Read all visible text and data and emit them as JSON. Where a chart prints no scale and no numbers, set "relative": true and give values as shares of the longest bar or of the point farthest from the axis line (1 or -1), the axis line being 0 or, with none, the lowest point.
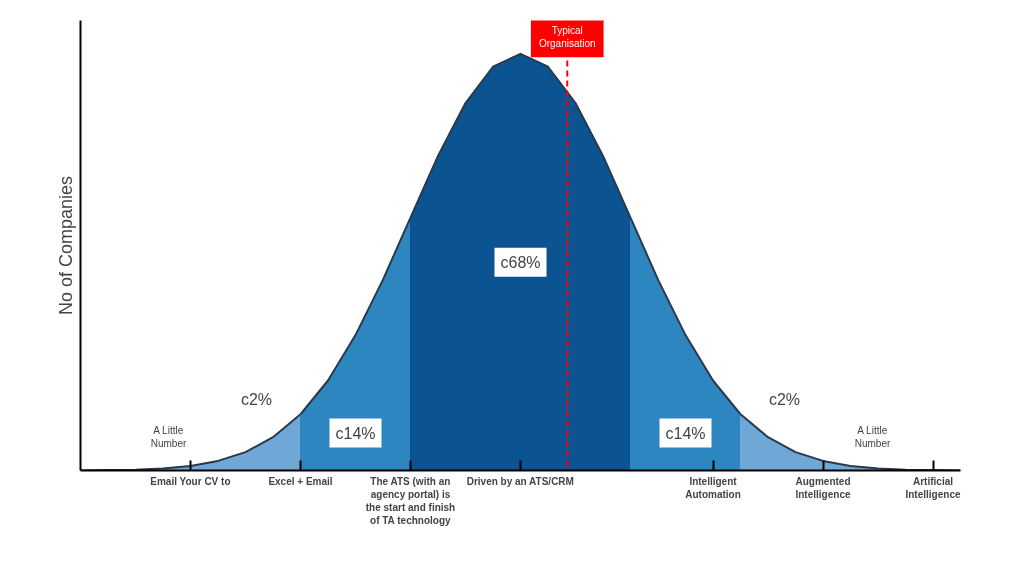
{
  "chart_data": {
    "type": "area",
    "relative": true,
    "ylabel": "No of Companies",
    "categories": [
      null,
      null,
      null,
      null,
      "Email Your CV to",
      null,
      null,
      null,
      "Excel + Email",
      null,
      null,
      null,
      "The ATS (with an agency portal) is the start and finish of TA technology",
      null,
      null,
      null,
      "Driven by an ATS/CRM",
      null,
      null,
      null,
      null,
      null,
      null,
      "Intelligent Automation",
      null,
      null,
      null,
      "Augmented Intelligence",
      null,
      null,
      null,
      "Artificial Intelligence",
      null
    ],
    "grid": false,
    "series": [
      {
        "color": "#6fa8d6",
        "values": [
          0.0,
          0.001,
          0.002,
          0.005,
          0.011,
          0.023,
          0.044,
          0.08,
          0.135,
          null,
          null,
          null,
          null,
          null,
          null,
          null,
          null,
          null,
          null,
          null,
          null,
          null,
          null,
          null,
          null,
          null,
          null,
          null,
          null,
          null,
          null,
          null,
          null
        ]
      },
      {
        "color": "#2e86c1",
        "values": [
          null,
          null,
          null,
          null,
          null,
          null,
          null,
          null,
          0.135,
          0.216,
          0.325,
          0.458,
          0.607,
          null,
          null,
          null,
          null,
          null,
          null,
          null,
          null,
          null,
          null,
          null,
          null,
          null,
          null,
          null,
          null,
          null,
          null,
          null,
          null
        ]
      },
      {
        "color": "#0b5391",
        "values": [
          null,
          null,
          null,
          null,
          null,
          null,
          null,
          null,
          null,
          null,
          null,
          null,
          0.607,
          0.755,
          0.882,
          0.969,
          1.0,
          0.969,
          0.882,
          0.755,
          0.607,
          null,
          null,
          null,
          null,
          null,
          null,
          null,
          null,
          null,
          null,
          null,
          null
        ]
      },
      {
        "color": "#2e86c1",
        "values": [
          null,
          null,
          null,
          null,
          null,
          null,
          null,
          null,
          null,
          null,
          null,
          null,
          null,
          null,
          null,
          null,
          null,
          null,
          null,
          null,
          0.607,
          0.458,
          0.325,
          0.216,
          0.135,
          null,
          null,
          null,
          null,
          null,
          null,
          null,
          null
        ]
      },
      {
        "color": "#6fa8d6",
        "values": [
          null,
          null,
          null,
          null,
          null,
          null,
          null,
          null,
          null,
          null,
          null,
          null,
          null,
          null,
          null,
          null,
          null,
          null,
          null,
          null,
          null,
          null,
          null,
          null,
          0.135,
          0.08,
          0.044,
          0.023,
          0.011,
          0.005,
          0.002,
          0.001,
          0.0
        ]
      }
    ],
    "annotations": [
      "c68%",
      "c14%",
      "c14%",
      "c2%",
      "c2%",
      "A Little Number",
      "A Little Number",
      "Typical Organisation"
    ]
  }
}
